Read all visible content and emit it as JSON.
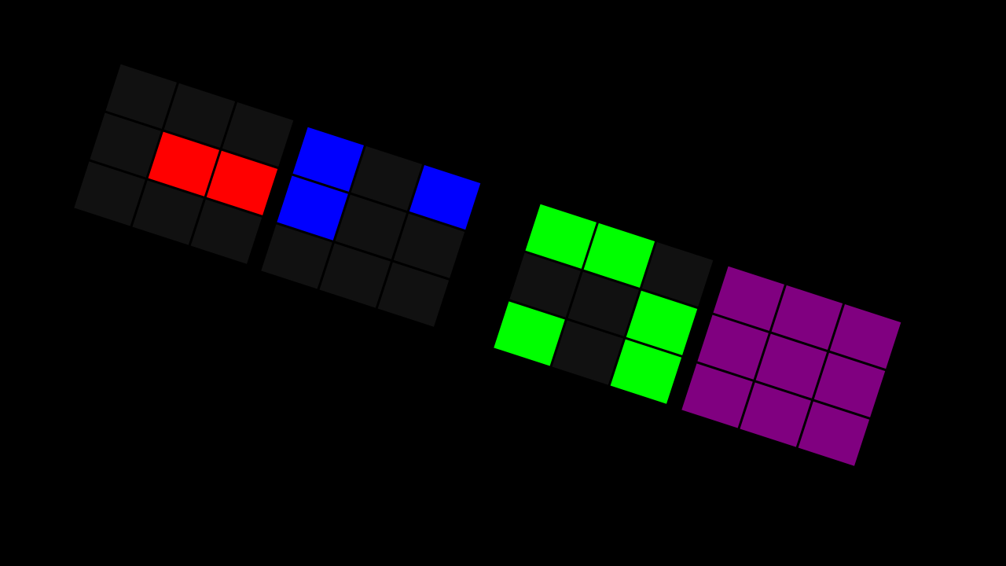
{
  "background": "#000000",
  "empty_color": "#111111",
  "grids": [
    {
      "color_name": "red",
      "color": "#ff0000",
      "cells": [
        [
          0,
          0,
          0
        ],
        [
          0,
          1,
          1
        ],
        [
          0,
          0,
          0
        ]
      ]
    },
    {
      "color_name": "blue",
      "color": "#0000ff",
      "cells": [
        [
          1,
          0,
          1
        ],
        [
          1,
          0,
          0
        ],
        [
          0,
          0,
          0
        ]
      ]
    },
    {
      "color_name": "green",
      "color": "#00ff00",
      "cells": [
        [
          1,
          1,
          0
        ],
        [
          0,
          0,
          1
        ],
        [
          1,
          0,
          1
        ]
      ]
    },
    {
      "color_name": "purple",
      "color": "#800080",
      "cells": [
        [
          1,
          1,
          1
        ],
        [
          1,
          1,
          1
        ],
        [
          1,
          1,
          1
        ]
      ]
    }
  ]
}
